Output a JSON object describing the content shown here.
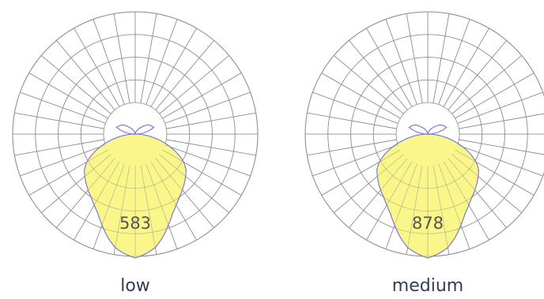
{
  "chart_data": [
    {
      "type": "polar",
      "label": "low",
      "peak_value": "583",
      "fill_color": "#fbf68a",
      "outline_color": "#7a7ad0",
      "grid_color": "#8c8c8c",
      "rings": 4,
      "spokes_deg_step": 10,
      "lobe_profile": [
        [
          0,
          1.0
        ],
        [
          5,
          0.97
        ],
        [
          10,
          0.93
        ],
        [
          15,
          0.86
        ],
        [
          20,
          0.78
        ],
        [
          25,
          0.71
        ],
        [
          30,
          0.66
        ],
        [
          35,
          0.62
        ],
        [
          40,
          0.59
        ],
        [
          45,
          0.56
        ],
        [
          50,
          0.53
        ],
        [
          55,
          0.5
        ],
        [
          60,
          0.45
        ],
        [
          65,
          0.38
        ],
        [
          70,
          0.3
        ],
        [
          75,
          0.22
        ],
        [
          80,
          0.14
        ],
        [
          85,
          0.07
        ],
        [
          90,
          0.02
        ]
      ],
      "upward_lobes": [
        [
          110,
          0.16
        ],
        [
          125,
          0.13
        ],
        [
          140,
          0.07
        ],
        [
          160,
          0.02
        ],
        [
          180,
          0.0
        ]
      ]
    },
    {
      "type": "polar",
      "label": "medium",
      "peak_value": "878",
      "fill_color": "#fbf68a",
      "outline_color": "#7a7ad0",
      "grid_color": "#8c8c8c",
      "rings": 4,
      "spokes_deg_step": 10,
      "lobe_profile": [
        [
          0,
          1.0
        ],
        [
          5,
          0.97
        ],
        [
          10,
          0.93
        ],
        [
          15,
          0.86
        ],
        [
          20,
          0.78
        ],
        [
          25,
          0.71
        ],
        [
          30,
          0.66
        ],
        [
          35,
          0.62
        ],
        [
          40,
          0.59
        ],
        [
          45,
          0.56
        ],
        [
          50,
          0.53
        ],
        [
          55,
          0.5
        ],
        [
          60,
          0.45
        ],
        [
          65,
          0.38
        ],
        [
          70,
          0.3
        ],
        [
          75,
          0.22
        ],
        [
          80,
          0.14
        ],
        [
          85,
          0.07
        ],
        [
          90,
          0.02
        ]
      ],
      "upward_lobes": [
        [
          110,
          0.16
        ],
        [
          125,
          0.13
        ],
        [
          140,
          0.07
        ],
        [
          160,
          0.02
        ],
        [
          180,
          0.0
        ]
      ]
    }
  ]
}
